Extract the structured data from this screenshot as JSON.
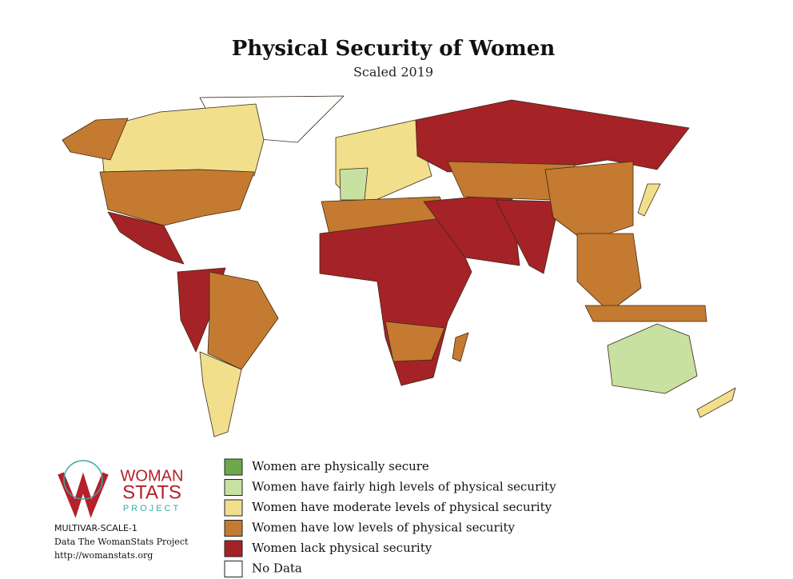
{
  "header": {
    "title": "Physical Security of Women",
    "subtitle": "Scaled 2019"
  },
  "logo": {
    "line1": "WOMAN",
    "line2": "STATS",
    "line3": "PROJECT"
  },
  "credits": [
    "MULTIVAR-SCALE-1",
    "Data The WomanStats Project",
    "http://womanstats.org"
  ],
  "legend": [
    {
      "label": "Women are physically secure",
      "color": "#6ea84e"
    },
    {
      "label": "Women have fairly high levels of physical security",
      "color": "#c8e0a0"
    },
    {
      "label": "Women have moderate levels of physical security",
      "color": "#f1df8c"
    },
    {
      "label": "Women have low levels of physical security",
      "color": "#c47a30"
    },
    {
      "label": "Women lack physical security",
      "color": "#a52226"
    },
    {
      "label": "No Data",
      "color": "#ffffff"
    }
  ]
}
